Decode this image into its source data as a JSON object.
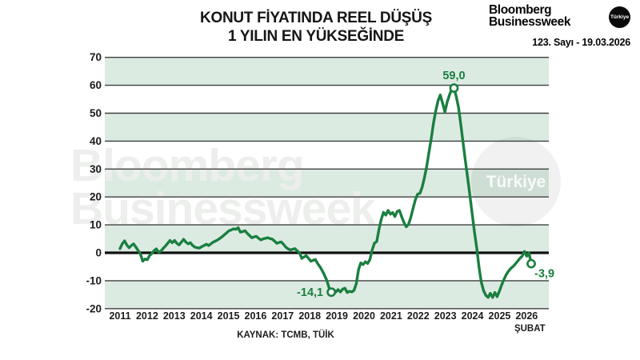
{
  "header": {
    "title_line1": "KONUT FİYATINDA REEL DÜŞÜŞ",
    "title_line2": "1 YILIN EN YÜKSEĞİNDE",
    "brand_line1": "Bloomberg",
    "brand_line2": "Businessweek",
    "brand_badge": "Türkiye",
    "issue_line": "123. Sayı - 19.03.2026"
  },
  "watermark": {
    "line1": "Bloomberg",
    "line2": "Businessweek",
    "badge": "Türkiye"
  },
  "source": "KAYNAK: TCMB, TÜİK",
  "colors": {
    "line": "#1A7F40",
    "band_green": "#DCEBE2",
    "grid": "#3F3F3F",
    "zero_line": "#111111",
    "annotation": "#1A7F40",
    "text": "#1C1C1C",
    "watermark_text": "#EBEEEB",
    "badge_bg": "#0A0A0A"
  },
  "chart_data": {
    "type": "line",
    "title": "KONUT FİYATINDA REEL DÜŞÜŞ 1 YILIN EN YÜKSEĞİNDE",
    "xlabel": "",
    "ylabel": "",
    "ylim": [
      -20,
      70
    ],
    "y_ticks": [
      "70",
      "60",
      "50",
      "40",
      "30",
      "20",
      "10",
      "0",
      "-10",
      "-20"
    ],
    "x_tick_labels": [
      "2011",
      "2012",
      "2013",
      "2014",
      "2015",
      "2016",
      "2017",
      "2018",
      "2019",
      "2020",
      "2021",
      "2022",
      "2023",
      "2024",
      "2025",
      "2026"
    ],
    "x_last_tick_sublabel": "ŞUBAT",
    "grid": true,
    "legend": false,
    "start": "2011-01",
    "end": "2026-02",
    "monthly_values": [
      1.5,
      3.2,
      4.3,
      2.8,
      1.8,
      2.6,
      3.2,
      2.0,
      0.8,
      -0.5,
      -3.0,
      -2.2,
      -2.5,
      -1.0,
      -0.3,
      0.8,
      1.4,
      0.2,
      0.6,
      1.6,
      2.4,
      3.4,
      4.4,
      3.6,
      4.4,
      3.4,
      2.8,
      3.8,
      4.8,
      3.8,
      3.2,
      3.6,
      2.6,
      2.0,
      1.8,
      1.7,
      2.2,
      2.6,
      3.1,
      2.6,
      3.2,
      3.8,
      4.2,
      4.6,
      5.2,
      5.8,
      6.5,
      7.2,
      7.9,
      8.2,
      8.6,
      8.4,
      9.0,
      7.4,
      7.6,
      7.9,
      7.0,
      6.2,
      5.4,
      5.7,
      5.9,
      5.2,
      4.6,
      5.0,
      5.2,
      5.4,
      5.1,
      4.9,
      4.2,
      3.4,
      3.7,
      3.9,
      3.0,
      2.0,
      1.4,
      1.0,
      1.3,
      1.5,
      0.7,
      0.0,
      -2.0,
      -1.5,
      -1.0,
      -2.0,
      -3.0,
      -2.7,
      -2.4,
      -3.9,
      -5.0,
      -6.4,
      -8.0,
      -9.8,
      -12.5,
      -14.1,
      -13.2,
      -14.0,
      -13.2,
      -14.0,
      -13.0,
      -12.7,
      -14.2,
      -13.8,
      -14.0,
      -13.5,
      -11.0,
      -6.0,
      -3.6,
      -4.2,
      -3.2,
      -3.8,
      -2.4,
      1.0,
      3.5,
      4.0,
      8.5,
      12.0,
      14.5,
      13.5,
      15.2,
      13.8,
      14.4,
      13.0,
      14.8,
      15.2,
      12.8,
      10.8,
      9.3,
      10.2,
      12.7,
      16.0,
      19.0,
      21.0,
      21.3,
      23.5,
      27.0,
      31.0,
      36.0,
      41.0,
      46.5,
      51.0,
      54.5,
      56.5,
      53.5,
      50.5,
      54.0,
      56.5,
      58.5,
      59.0,
      56.0,
      52.0,
      46.0,
      39.5,
      33.0,
      27.0,
      20.5,
      14.0,
      7.6,
      1.8,
      -5.0,
      -10.5,
      -13.5,
      -15.2,
      -16.0,
      -14.5,
      -16.0,
      -14.2,
      -15.7,
      -13.7,
      -11.5,
      -9.5,
      -7.8,
      -6.6,
      -5.6,
      -4.9,
      -4.0,
      -3.0,
      -2.0,
      -1.2,
      0.5,
      -1.2,
      0.0,
      -3.9
    ],
    "annotations": [
      {
        "index": 93,
        "value": -14.1,
        "label": "-14,1",
        "placement": "left"
      },
      {
        "index": 147,
        "value": 59.0,
        "label": "59,0",
        "placement": "above"
      },
      {
        "index": 181,
        "value": -3.9,
        "label": "-3,9",
        "placement": "below-right"
      }
    ]
  }
}
